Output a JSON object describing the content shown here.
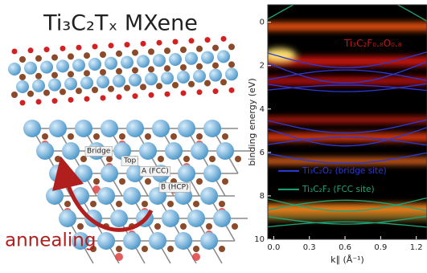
{
  "figure": {
    "left": {
      "title": "Ti₃C₂Tₓ MXene",
      "sites": [
        "Bridge",
        "Top",
        "A (FCC)",
        "B (HCP)"
      ],
      "arrow_label": "annealing"
    },
    "chart_data": {
      "type": "heatmap",
      "y_label": "binding energy (eV)",
      "x_label": "k∥ (Å⁻¹)",
      "annotation": "Ti₃C₂F₀.₈O₀.₈",
      "xlim": [
        -0.05,
        1.29
      ],
      "xticks": [
        {
          "value": 0,
          "label": "0.0"
        },
        0.3,
        0.6,
        0.9,
        1.2
      ],
      "ylim": [
        10,
        -0.8
      ],
      "yticks": [
        0,
        2,
        4,
        6,
        8,
        10
      ],
      "series": [
        {
          "name": "Ti₃C₂O₂ (bridge site)",
          "color": "#2a3ad8"
        },
        {
          "name": "Ti₃C₂F₂ (FCC site)",
          "color": "#1fa57a"
        }
      ]
    }
  }
}
